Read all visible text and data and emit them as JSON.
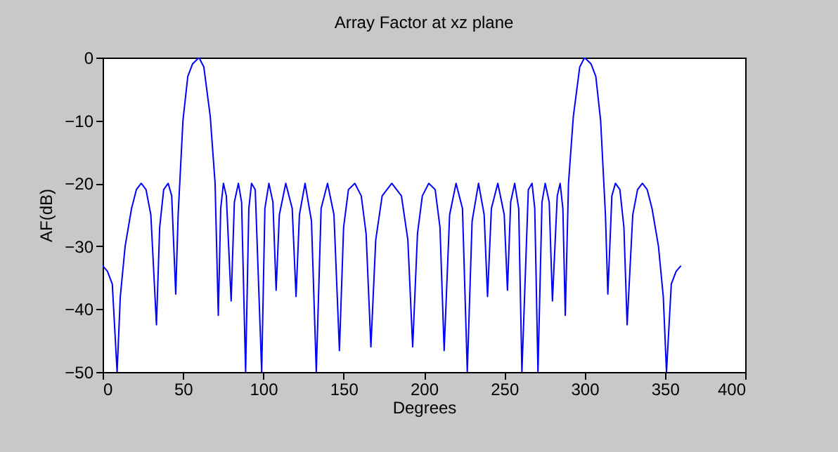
{
  "chart_data": {
    "type": "line",
    "title": "Array Factor at xz plane",
    "xlabel": "Degrees",
    "ylabel": "AF(dB)",
    "xlim": [
      0,
      400
    ],
    "xticks": [
      0,
      50,
      100,
      150,
      200,
      250,
      300,
      350,
      400
    ],
    "ylim": [
      -50,
      0
    ],
    "yticks": [
      -50,
      -40,
      -30,
      -20,
      -10,
      0
    ],
    "grid": false,
    "marker": "none",
    "line_style": "solid",
    "series": [
      {
        "color": "#0000ff",
        "x": [
          0,
          3,
          6,
          9,
          11,
          14,
          18,
          21,
          24,
          27,
          30,
          33.5,
          35.5,
          38,
          40.8,
          43,
          45.5,
          47,
          48,
          50,
          53,
          56,
          60,
          63,
          67,
          70,
          72,
          73.5,
          75.2,
          77,
          80,
          82,
          84.5,
          86.5,
          89,
          91,
          92.7,
          95,
          99,
          101,
          103.5,
          106,
          108,
          110,
          114,
          118,
          120.4,
          122.5,
          126,
          130,
          133,
          136,
          140,
          144,
          147.4,
          150,
          153,
          157,
          161,
          164,
          167,
          170,
          174,
          180,
          186,
          190,
          193,
          196,
          199,
          203,
          207,
          210,
          212.6,
          216,
          220,
          224,
          227,
          230,
          234,
          237.5,
          239.6,
          242,
          246,
          250,
          252,
          254,
          256.5,
          259,
          261,
          265,
          267.3,
          269,
          271,
          273.5,
          275.5,
          278,
          280,
          283,
          284.8,
          286.5,
          288,
          290,
          293,
          297,
          300,
          304,
          307,
          310,
          312,
          313,
          314.5,
          317,
          319.2,
          322,
          324.5,
          326.5,
          330,
          333,
          336,
          339,
          342,
          346,
          349,
          351,
          354,
          357,
          360
        ],
        "values": [
          -33.1,
          -34,
          -36,
          -50,
          -38,
          -30,
          -24,
          -21,
          -20,
          -21,
          -25,
          -42.5,
          -27,
          -21,
          -20,
          -22,
          -37.6,
          -25,
          -20,
          -10,
          -3,
          -1,
          0,
          -1.5,
          -9.4,
          -20,
          -41,
          -24,
          -20,
          -22,
          -38.7,
          -23,
          -20,
          -23,
          -50,
          -24,
          -20,
          -21,
          -50,
          -24,
          -20,
          -23,
          -37,
          -25,
          -20,
          -24,
          -38,
          -25,
          -20,
          -26,
          -50,
          -24,
          -20,
          -25,
          -46.6,
          -27,
          -21,
          -20,
          -22,
          -28,
          -46,
          -29,
          -22,
          -20,
          -22,
          -29,
          -46,
          -28,
          -22,
          -20,
          -21,
          -27,
          -46.6,
          -25,
          -20,
          -24,
          -50,
          -26,
          -20,
          -25,
          -38,
          -24,
          -20,
          -25,
          -37,
          -23,
          -20,
          -24,
          -50,
          -21,
          -20,
          -24,
          -50,
          -23,
          -20,
          -23,
          -38.7,
          -22,
          -20,
          -24,
          -41,
          -20,
          -9.4,
          -1.5,
          0,
          -1,
          -3,
          -10,
          -20,
          -25,
          -37.6,
          -22,
          -20,
          -21,
          -27,
          -42.5,
          -25,
          -21,
          -20,
          -21,
          -24,
          -30,
          -38,
          -50,
          -36,
          -34,
          -33.1
        ]
      }
    ]
  }
}
